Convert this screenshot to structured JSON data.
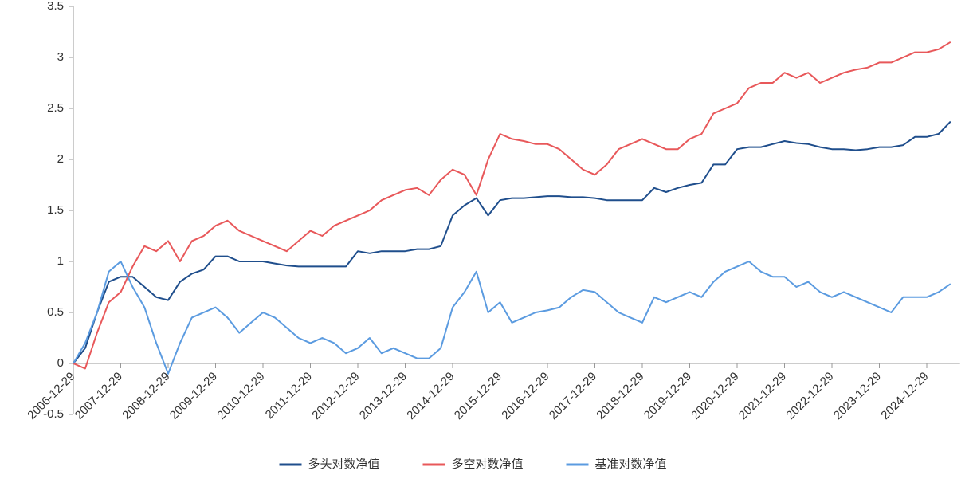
{
  "chart_data": {
    "type": "line",
    "categories": [
      "2006-12-29",
      null,
      null,
      null,
      "2007-12-29",
      null,
      null,
      null,
      "2008-12-29",
      null,
      null,
      null,
      "2009-12-29",
      null,
      null,
      null,
      "2010-12-29",
      null,
      null,
      null,
      "2011-12-29",
      null,
      null,
      null,
      "2012-12-29",
      null,
      null,
      null,
      "2013-12-29",
      null,
      null,
      null,
      "2014-12-29",
      null,
      null,
      null,
      "2015-12-29",
      null,
      null,
      null,
      "2016-12-29",
      null,
      null,
      null,
      "2017-12-29",
      null,
      null,
      null,
      "2018-12-29",
      null,
      null,
      null,
      "2019-12-29",
      null,
      null,
      null,
      "2020-12-29",
      null,
      null,
      null,
      "2021-12-29",
      null,
      null,
      null,
      "2022-12-29",
      null,
      null,
      null,
      "2023-12-29",
      null,
      null,
      null,
      "2024-12-29",
      null,
      null
    ],
    "series": [
      {
        "name": "多头对数净值",
        "color": "#1f4e8c",
        "values": [
          0,
          0.15,
          0.5,
          0.8,
          0.85,
          0.85,
          0.75,
          0.65,
          0.62,
          0.8,
          0.88,
          0.92,
          1.05,
          1.05,
          1.0,
          1.0,
          1.0,
          0.98,
          0.96,
          0.95,
          0.95,
          0.95,
          0.95,
          0.95,
          1.1,
          1.08,
          1.1,
          1.1,
          1.1,
          1.12,
          1.12,
          1.15,
          1.45,
          1.55,
          1.62,
          1.45,
          1.6,
          1.62,
          1.62,
          1.63,
          1.64,
          1.64,
          1.63,
          1.63,
          1.62,
          1.6,
          1.6,
          1.6,
          1.6,
          1.72,
          1.68,
          1.72,
          1.75,
          1.77,
          1.95,
          1.95,
          2.1,
          2.12,
          2.12,
          2.15,
          2.18,
          2.16,
          2.15,
          2.12,
          2.1,
          2.1,
          2.09,
          2.1,
          2.12,
          2.12,
          2.14,
          2.22,
          2.22,
          2.25,
          2.37
        ]
      },
      {
        "name": "多空对数净值",
        "color": "#e8585a",
        "values": [
          0,
          -0.05,
          0.3,
          0.6,
          0.7,
          0.95,
          1.15,
          1.1,
          1.2,
          1.0,
          1.2,
          1.25,
          1.35,
          1.4,
          1.3,
          1.25,
          1.2,
          1.15,
          1.1,
          1.2,
          1.3,
          1.25,
          1.35,
          1.4,
          1.45,
          1.5,
          1.6,
          1.65,
          1.7,
          1.72,
          1.65,
          1.8,
          1.9,
          1.85,
          1.65,
          2.0,
          2.25,
          2.2,
          2.18,
          2.15,
          2.15,
          2.1,
          2.0,
          1.9,
          1.85,
          1.95,
          2.1,
          2.15,
          2.2,
          2.15,
          2.1,
          2.1,
          2.2,
          2.25,
          2.45,
          2.5,
          2.55,
          2.7,
          2.75,
          2.75,
          2.85,
          2.8,
          2.85,
          2.75,
          2.8,
          2.85,
          2.88,
          2.9,
          2.95,
          2.95,
          3.0,
          3.05,
          3.05,
          3.08,
          3.15
        ]
      },
      {
        "name": "基准对数净值",
        "color": "#5b9be0",
        "values": [
          0,
          0.2,
          0.5,
          0.9,
          1.0,
          0.75,
          0.55,
          0.2,
          -0.1,
          0.2,
          0.45,
          0.5,
          0.55,
          0.45,
          0.3,
          0.4,
          0.5,
          0.45,
          0.35,
          0.25,
          0.2,
          0.25,
          0.2,
          0.1,
          0.15,
          0.25,
          0.1,
          0.15,
          0.1,
          0.05,
          0.05,
          0.15,
          0.55,
          0.7,
          0.9,
          0.5,
          0.6,
          0.4,
          0.45,
          0.5,
          0.52,
          0.55,
          0.65,
          0.72,
          0.7,
          0.6,
          0.5,
          0.45,
          0.4,
          0.65,
          0.6,
          0.65,
          0.7,
          0.65,
          0.8,
          0.9,
          0.95,
          1.0,
          0.9,
          0.85,
          0.85,
          0.75,
          0.8,
          0.7,
          0.65,
          0.7,
          0.65,
          0.6,
          0.55,
          0.5,
          0.65,
          0.65,
          0.65,
          0.7,
          0.78
        ]
      }
    ],
    "ylim": [
      -0.5,
      3.5
    ],
    "yticks": [
      -0.5,
      0,
      0.5,
      1,
      1.5,
      2,
      2.5,
      3,
      3.5
    ],
    "legend": "bottom"
  }
}
